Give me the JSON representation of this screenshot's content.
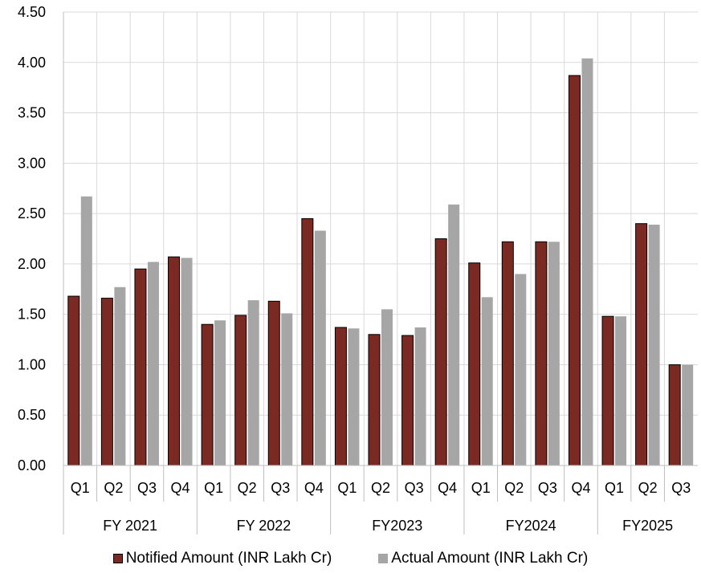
{
  "chart_data": {
    "type": "bar",
    "groups": [
      {
        "label": "FY 2021",
        "quarters": [
          "Q1",
          "Q2",
          "Q3",
          "Q4"
        ]
      },
      {
        "label": "FY 2022",
        "quarters": [
          "Q1",
          "Q2",
          "Q3",
          "Q4"
        ]
      },
      {
        "label": "FY2023",
        "quarters": [
          "Q1",
          "Q2",
          "Q3",
          "Q4"
        ]
      },
      {
        "label": "FY2024",
        "quarters": [
          "Q1",
          "Q2",
          "Q3",
          "Q4"
        ]
      },
      {
        "label": "FY2025",
        "quarters": [
          "Q1",
          "Q2",
          "Q3"
        ]
      }
    ],
    "series": [
      {
        "name": "Notified Amount (INR Lakh Cr)",
        "color": "#7a2a22",
        "values": [
          1.68,
          1.66,
          1.95,
          2.07,
          1.4,
          1.49,
          1.63,
          2.45,
          1.37,
          1.3,
          1.29,
          2.25,
          2.01,
          2.22,
          2.22,
          3.87,
          1.48,
          2.4,
          1.0
        ]
      },
      {
        "name": "Actual Amount (INR Lakh Cr)",
        "color": "#a6a6a6",
        "values": [
          2.67,
          1.77,
          2.02,
          2.06,
          1.44,
          1.64,
          1.51,
          2.33,
          1.36,
          1.55,
          1.37,
          2.59,
          1.67,
          1.9,
          2.22,
          4.04,
          1.48,
          2.39,
          1.0
        ]
      }
    ],
    "ylim": [
      0,
      4.5
    ],
    "yticks": [
      "0.00",
      "0.50",
      "1.00",
      "1.50",
      "2.00",
      "2.50",
      "3.00",
      "3.50",
      "4.00",
      "4.50"
    ],
    "grid": true,
    "legend_position": "bottom"
  }
}
